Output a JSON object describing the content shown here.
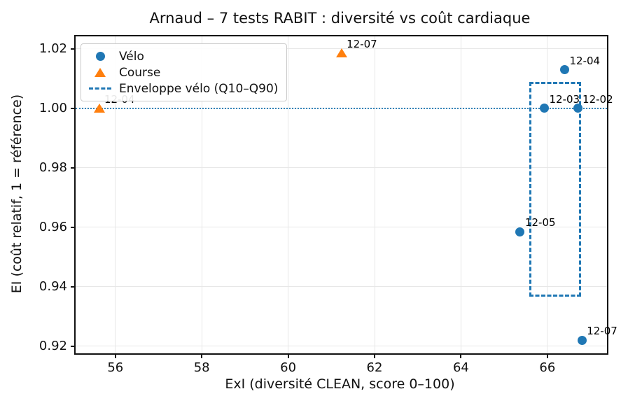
{
  "figure": {
    "kind": "matplotlib-scatter-figure"
  },
  "colors": {
    "blue": "#1f77b4",
    "orange": "#ff7f0e",
    "grid": "#e7e7e7",
    "spine": "#121212",
    "text": "#111111"
  },
  "chart_data": {
    "type": "scatter",
    "title": "Arnaud – 7 tests RABIT : diversité vs coût cardiaque",
    "xlabel": "ExI (diversité CLEAN, score 0–100)",
    "ylabel": "EI (coût relatif, 1 = référence)",
    "xlim": [
      55.08,
      67.38
    ],
    "ylim": [
      0.9176,
      1.0242
    ],
    "xticks": [
      56,
      58,
      60,
      62,
      64,
      66
    ],
    "xticklabels": [
      "56",
      "58",
      "60",
      "62",
      "64",
      "66"
    ],
    "yticks": [
      0.92,
      0.94,
      0.96,
      0.98,
      1.0,
      1.02
    ],
    "yticklabels": [
      "0.92",
      "0.94",
      "0.96",
      "0.98",
      "1.00",
      "1.02"
    ],
    "grid": true,
    "legend_position": "upper left",
    "reference_line": {
      "y": 1.0,
      "style": "dotted",
      "color": "#1f77b4"
    },
    "envelope_rect": {
      "label": "Enveloppe vélo (Q10–Q90)",
      "x0": 65.6,
      "x1": 66.76,
      "y0": 0.9369,
      "y1": 1.0085,
      "style": "dashed",
      "color": "#1f77b4"
    },
    "series": [
      {
        "name": "Vélo",
        "marker": "circle",
        "color": "#1f77b4",
        "points": [
          {
            "label": "12-04",
            "x": 66.4,
            "y": 1.013
          },
          {
            "label": "12-03",
            "x": 65.93,
            "y": 1.0
          },
          {
            "label": "12-02",
            "x": 66.7,
            "y": 1.0
          },
          {
            "label": "12-05",
            "x": 65.37,
            "y": 0.9585
          },
          {
            "label": "12-07",
            "x": 66.8,
            "y": 0.922
          }
        ]
      },
      {
        "name": "Course",
        "marker": "triangle",
        "color": "#ff7f0e",
        "points": [
          {
            "label": "12-04",
            "x": 55.63,
            "y": 1.0
          },
          {
            "label": "12-07",
            "x": 61.24,
            "y": 1.0185
          }
        ]
      }
    ]
  }
}
